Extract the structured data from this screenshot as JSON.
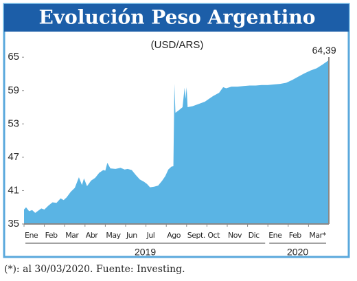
{
  "chart_data": {
    "type": "area",
    "title": "Evolución Peso Argentino",
    "subtitle": "(USD/ARS)",
    "end_label": "64,39",
    "footnote": "(*): al 30/03/2020. Fuente: Investing.",
    "color": "#5ab4e4",
    "xlim": [
      0,
      15
    ],
    "ylim": [
      35,
      67.5
    ],
    "yticks": [
      35,
      41,
      47,
      53,
      59,
      65
    ],
    "xticks": [
      {
        "value": 0,
        "label": "Ene"
      },
      {
        "value": 1,
        "label": "Feb"
      },
      {
        "value": 2,
        "label": "Mar"
      },
      {
        "value": 3,
        "label": "Abr"
      },
      {
        "value": 4,
        "label": "May"
      },
      {
        "value": 5,
        "label": "Jun"
      },
      {
        "value": 6,
        "label": "Jul"
      },
      {
        "value": 7,
        "label": "Ago"
      },
      {
        "value": 8,
        "label": "Sept."
      },
      {
        "value": 9,
        "label": "Oct"
      },
      {
        "value": 10,
        "label": "Nov"
      },
      {
        "value": 11,
        "label": "Dic"
      },
      {
        "value": 12,
        "label": "Ene"
      },
      {
        "value": 13,
        "label": "Feb"
      },
      {
        "value": 14,
        "label": "Mar*"
      }
    ],
    "year_labels": [
      "2019",
      "2020"
    ],
    "x": [
      0,
      0.1,
      0.25,
      0.4,
      0.55,
      0.7,
      0.85,
      1.0,
      1.2,
      1.4,
      1.6,
      1.8,
      1.95,
      2.1,
      2.3,
      2.5,
      2.7,
      2.85,
      2.95,
      3.1,
      3.3,
      3.5,
      3.7,
      3.9,
      4.0,
      4.1,
      4.25,
      4.5,
      4.75,
      4.95,
      5.1,
      5.3,
      5.5,
      5.7,
      5.9,
      6.05,
      6.2,
      6.4,
      6.6,
      6.8,
      6.95,
      7.1,
      7.25,
      7.35,
      7.4,
      7.45,
      7.6,
      7.8,
      7.9,
      7.95,
      8.0,
      8.05,
      8.3,
      8.6,
      8.9,
      9.1,
      9.3,
      9.6,
      9.8,
      9.95,
      10.2,
      10.5,
      10.8,
      11.1,
      11.4,
      11.7,
      12.0,
      12.3,
      12.6,
      12.9,
      13.2,
      13.5,
      13.8,
      14.1,
      14.4,
      14.7,
      14.97
    ],
    "values": [
      37.6,
      38.0,
      37.3,
      37.5,
      37.0,
      37.4,
      37.8,
      37.6,
      38.3,
      38.9,
      38.8,
      39.6,
      39.3,
      39.8,
      40.8,
      41.5,
      43.4,
      42.0,
      43.2,
      41.8,
      42.8,
      43.3,
      44.2,
      44.7,
      44.6,
      46.0,
      45.0,
      44.9,
      45.1,
      44.8,
      44.9,
      44.7,
      43.8,
      43.0,
      42.6,
      42.2,
      41.6,
      41.7,
      41.9,
      42.8,
      43.6,
      44.8,
      45.3,
      45.4,
      60.2,
      55.0,
      55.4,
      56.0,
      59.5,
      57.5,
      59.6,
      56.0,
      56.2,
      56.6,
      57.0,
      57.5,
      58.0,
      58.6,
      59.6,
      59.4,
      59.7,
      59.7,
      59.8,
      59.9,
      59.9,
      60.0,
      60.0,
      60.1,
      60.2,
      60.4,
      60.9,
      61.5,
      62.1,
      62.6,
      63.0,
      63.7,
      64.39
    ]
  }
}
